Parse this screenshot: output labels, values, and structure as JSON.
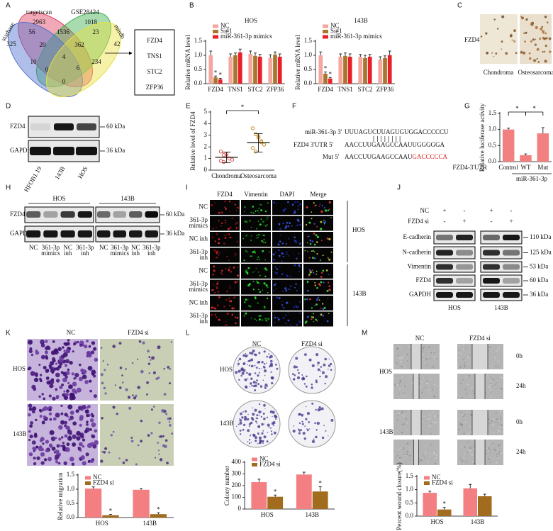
{
  "panel_labels": [
    "A",
    "B",
    "C",
    "D",
    "E",
    "F",
    "G",
    "H",
    "I",
    "J",
    "K",
    "L",
    "M"
  ],
  "venn": {
    "sets": [
      "targetscan",
      "GSE28424",
      "starbase",
      "mirdb"
    ],
    "counts": [
      2963,
      1018,
      325,
      56,
      1536,
      23,
      42,
      20,
      362,
      10,
      234,
      4,
      6,
      0,
      0
    ],
    "genes": [
      "FZD4",
      "TNS1",
      "STC2",
      "ZFP36"
    ]
  },
  "panel_c": {
    "row_label": "FZD4",
    "columns": [
      "Chondroma",
      "Osteosarcoma"
    ]
  },
  "panel_d": {
    "rows": [
      "FZD4",
      "GAPDH"
    ],
    "sizes": [
      "60 kDa",
      "36 kDa"
    ],
    "lanes": [
      "HFOB1.19",
      "143B",
      "HOS"
    ]
  },
  "panel_f": {
    "mir_label": "miR-361-3p  3'",
    "mir_seq": "UUUAGUCUUAGUGUGGACCCCCU",
    "utr_label": "FZD4 3'UTR 5'",
    "utr_seq": "AACCUUGAAGCCAAUUGGGGGA",
    "mut_label": "Mut 5'",
    "mut_seq": "AACCUUGAAGCCAAU",
    "mut_site": "GACCCCCA"
  },
  "panel_h": {
    "groups": [
      "HOS",
      "143B"
    ],
    "rows": [
      "FZD4",
      "GAPDH"
    ],
    "sizes": [
      "60 kDa",
      "36 kDa"
    ],
    "lanes": [
      [
        [
          "NC"
        ],
        [
          "361-3p",
          "mimics"
        ],
        [
          "NC",
          "inh"
        ],
        [
          "361-3p",
          "inh"
        ]
      ],
      [
        [
          "NC"
        ],
        [
          "361-3p",
          "mimics"
        ],
        [
          "NC",
          "inh"
        ],
        [
          "361-3p",
          "inh"
        ]
      ]
    ]
  },
  "panel_i": {
    "columns": [
      "FZD4",
      "Vimentin",
      "DAPI",
      "Merge"
    ],
    "groups": [
      "HOS",
      "143B"
    ],
    "rows": [
      [
        [
          "NC"
        ],
        [
          "361-3p",
          "mimics"
        ],
        [
          "NC inh"
        ],
        [
          "361-3p",
          "inh"
        ]
      ],
      [
        [
          "NC"
        ],
        [
          "361-3p",
          "mimics"
        ],
        [
          "NC inh"
        ],
        [
          "361-3p",
          "inh"
        ]
      ]
    ]
  },
  "panel_j": {
    "conditions": [
      "NC",
      "FZD4 si"
    ],
    "signs": [
      [
        "+",
        "-",
        "+",
        "-"
      ],
      [
        "-",
        "+",
        "-",
        "+"
      ]
    ],
    "rows": [
      "E-cadherin",
      "N-cadherin",
      "Vimentin",
      "FZD4",
      "GAPDH"
    ],
    "sizes": [
      "110 kDa",
      "125 kDa",
      "53 kDa",
      "60 kDa",
      "36 kDa"
    ],
    "groups": [
      "HOS",
      "143B"
    ]
  },
  "panel_k": {
    "columns": [
      "NC",
      "FZD4 si"
    ],
    "rows": [
      "HOS",
      "143B"
    ]
  },
  "panel_l": {
    "columns": [
      "NC",
      "FZD4 si"
    ],
    "rows": [
      "HOS",
      "143B"
    ]
  },
  "panel_m": {
    "columns": [
      "NC",
      "FZD4 si"
    ],
    "rows": [
      "HOS",
      "143B"
    ],
    "times": [
      "0h",
      "24h",
      "0h",
      "24h"
    ]
  },
  "chart_data": [
    {
      "type": "bar",
      "title": "HOS",
      "ylabel": "Relative mRNA level",
      "categories": [
        "FZD4",
        "TNS1",
        "STC2",
        "ZFP36"
      ],
      "series": [
        {
          "name": "NC",
          "color": "#f4a6a0",
          "values": [
            1.0,
            0.95,
            1.05,
            0.9
          ],
          "errors": [
            0.15,
            0.1,
            0.1,
            0.12
          ]
        },
        {
          "name": "Si#1",
          "color": "#a8762e",
          "values": [
            0.22,
            1.0,
            0.98,
            1.02
          ],
          "errors": [
            0.05,
            0.08,
            0.1,
            0.1
          ]
        },
        {
          "name": "miR-361-3p mimics",
          "color": "#e8202a",
          "values": [
            0.15,
            1.1,
            0.95,
            0.95
          ],
          "errors": [
            0.04,
            0.12,
            0.08,
            0.1
          ]
        }
      ],
      "ylim": [
        0,
        1.5
      ],
      "yticks": [
        {
          "value": 0,
          "label": "0.0"
        },
        0.5,
        {
          "value": 1,
          "label": "1.0"
        },
        1.5
      ],
      "legend": "upper left",
      "annotations": [
        {
          "text": "*",
          "x": "FZD4"
        }
      ]
    },
    {
      "type": "bar",
      "title": "143B",
      "ylabel": "Relative mRNA level",
      "categories": [
        "FZD4",
        "TNS1",
        "STC2",
        "ZFP36"
      ],
      "series": [
        {
          "name": "NC",
          "color": "#f4a6a0",
          "values": [
            1.0,
            0.95,
            0.95,
            0.85
          ],
          "errors": [
            0.12,
            0.1,
            0.08,
            0.1
          ]
        },
        {
          "name": "Si#1",
          "color": "#a8762e",
          "values": [
            0.35,
            0.98,
            0.9,
            0.9
          ],
          "errors": [
            0.06,
            0.1,
            0.1,
            0.08
          ]
        },
        {
          "name": "miR-361-3p mimics",
          "color": "#e8202a",
          "values": [
            0.18,
            0.95,
            0.95,
            1.0
          ],
          "errors": [
            0.04,
            0.1,
            0.08,
            0.15
          ]
        }
      ],
      "ylim": [
        0,
        1.5
      ],
      "yticks": [
        {
          "value": 0,
          "label": "0.0"
        },
        0.5,
        {
          "value": 1,
          "label": "1.0"
        },
        1.5
      ],
      "legend": "upper left",
      "annotations": [
        {
          "text": "*",
          "x": "FZD4"
        }
      ]
    },
    {
      "type": "dot",
      "ylabel": "Relative level of FZD4",
      "categories": [
        "Chondroma",
        "Osteosarcoma"
      ],
      "points": [
        [
          1.6,
          1.3,
          1.2,
          1.0,
          0.9,
          0.8,
          0.7,
          1.4
        ],
        [
          3.6,
          3.1,
          2.8,
          2.5,
          2.2,
          1.9,
          1.6,
          2.9,
          2.4
        ]
      ],
      "values": [
        1.1,
        2.35
      ],
      "errors": [
        0.45,
        0.8
      ],
      "colors": [
        "#e05050",
        "#c8902a"
      ],
      "ylim": [
        0,
        5
      ],
      "yticks": [
        0,
        1,
        2,
        3,
        4,
        5
      ],
      "annotations": [
        {
          "text": "*",
          "x": [
            "Chondroma",
            "Osteosarcoma"
          ]
        }
      ]
    },
    {
      "type": "bar",
      "ylabel": "Relative luciferase activity",
      "categories": [
        "Control",
        "WT",
        "Mut"
      ],
      "values": [
        1.0,
        0.2,
        0.88
      ],
      "errors": [
        0.04,
        0.04,
        0.18
      ],
      "color": "#f28080",
      "x_row_label": "FZD4-3'UTR",
      "group_label": "miR-361-3p",
      "ylim": [
        0,
        1.5
      ],
      "yticks": [
        {
          "value": 0,
          "label": "0.0"
        },
        0.5,
        {
          "value": 1,
          "label": "1.0"
        },
        1.5
      ],
      "annotations": [
        {
          "text": "*",
          "x": [
            "Control",
            "WT"
          ]
        },
        {
          "text": "*",
          "x": [
            "WT",
            "Mut"
          ]
        }
      ]
    },
    {
      "type": "bar",
      "ylabel": "Relative migration",
      "categories": [
        "HOS",
        "143B"
      ],
      "series": [
        {
          "name": "NC",
          "color": "#f47f83",
          "values": [
            1.02,
            0.98
          ],
          "errors": [
            0.06,
            0.04
          ]
        },
        {
          "name": "FZD4 si",
          "color": "#a26c1f",
          "values": [
            0.08,
            0.12
          ],
          "errors": [
            0.03,
            0.05
          ]
        }
      ],
      "ylim": [
        0,
        1.5
      ],
      "yticks": [
        {
          "value": 0,
          "label": "0.0"
        },
        0.5,
        {
          "value": 1,
          "label": "1.0"
        },
        1.5
      ],
      "legend": "upper left",
      "annotations": [
        {
          "text": "*",
          "x": "HOS"
        },
        {
          "text": "*",
          "x": "143B"
        }
      ]
    },
    {
      "type": "bar",
      "ylabel": "Colony number",
      "categories": [
        "HOS",
        "143B"
      ],
      "series": [
        {
          "name": "NC",
          "color": "#f47f83",
          "values": [
            230,
            295
          ],
          "errors": [
            25,
            20
          ]
        },
        {
          "name": "FZD4 si",
          "color": "#a26c1f",
          "values": [
            105,
            150
          ],
          "errors": [
            15,
            40
          ]
        }
      ],
      "ylim": [
        0,
        400
      ],
      "yticks": [
        0,
        100,
        200,
        300,
        400
      ],
      "legend": "upper left",
      "annotations": [
        {
          "text": "*",
          "x": "HOS"
        },
        {
          "text": "*",
          "x": "143B"
        }
      ]
    },
    {
      "type": "bar",
      "ylabel": "Percent wound closure(%)",
      "categories": [
        "HOS",
        "143B"
      ],
      "series": [
        {
          "name": "NC",
          "color": "#f47f83",
          "values": [
            0.88,
            1.05
          ],
          "errors": [
            0.06,
            0.15
          ]
        },
        {
          "name": "FZD4 si",
          "color": "#a26c1f",
          "values": [
            0.25,
            0.75
          ],
          "errors": [
            0.08,
            0.08
          ]
        }
      ],
      "ylim": [
        0,
        1.5
      ],
      "yticks": [
        {
          "value": 0,
          "label": "0.0"
        },
        0.5,
        {
          "value": 1,
          "label": "1.0"
        },
        1.5
      ],
      "legend": "upper left",
      "annotations": [
        {
          "text": "*",
          "x": "HOS"
        }
      ]
    }
  ]
}
